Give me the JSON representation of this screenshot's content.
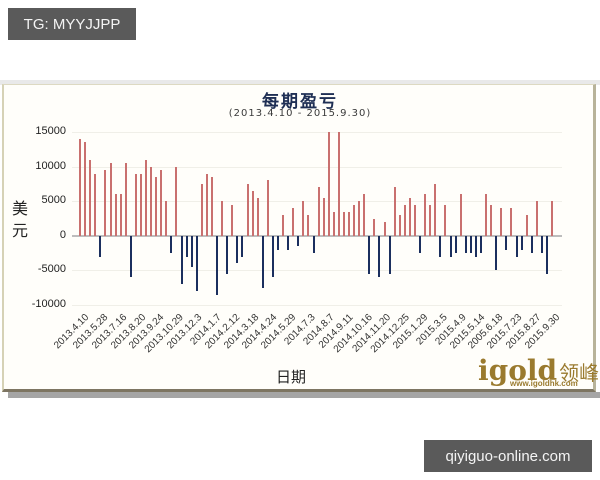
{
  "overlays": {
    "top_badge": "TG: MYYJJPP",
    "bottom_badge": "qiyiguo-online.com"
  },
  "logo": {
    "brand": "igold",
    "brand_cn": "领峰",
    "url": "www.igoldhk.com"
  },
  "chart_data": {
    "type": "bar",
    "title": "每期盈亏",
    "subtitle": "(2013.4.10 - 2015.9.30)",
    "xlabel": "日期",
    "ylabel": "美元",
    "ylim": [
      -10000,
      15000
    ],
    "yticks": [
      "15000",
      "10000",
      "5000",
      "0",
      "-5000",
      "-10000"
    ],
    "grid": true,
    "legend": "none",
    "colors": {
      "positive": "#c9706f",
      "negative": "#1b2f5e"
    },
    "x_tick_labels": [
      "2013.4.10",
      "2013.5.28",
      "2013.7.16",
      "2013.8.20",
      "2013.9.24",
      "2013.10.29",
      "2013.12.3",
      "2014.1.7",
      "2014.2.12",
      "2014.3.18",
      "2014.4.24",
      "2014.5.29",
      "2014.7.3",
      "2014.8.7",
      "2014.9.11",
      "2014.10.16",
      "2014.11.20",
      "2014.12.25",
      "2015.1.29",
      "2015.3.5",
      "2015.4.9",
      "2015.5.14",
      "2005.6.18",
      "2015.7.23",
      "2015.8.27",
      "2015.9.30"
    ],
    "values": [
      14000,
      13500,
      11000,
      9000,
      -3000,
      9500,
      10500,
      6000,
      6000,
      10500,
      -6000,
      9000,
      9000,
      11000,
      10000,
      8500,
      9500,
      5000,
      -2500,
      10000,
      -7000,
      -3000,
      -4500,
      -8000,
      7500,
      9000,
      8500,
      -8500,
      5000,
      -5500,
      4500,
      -4000,
      -3000,
      7500,
      6500,
      5500,
      -7500,
      8000,
      -6000,
      -2000,
      3000,
      -2000,
      4000,
      -1500,
      5000,
      3000,
      -2500,
      7000,
      5500,
      15000,
      3500,
      15000,
      3500,
      3500,
      4500,
      5000,
      6000,
      -5500,
      2500,
      -6000,
      2000,
      -5500,
      7000,
      3000,
      4500,
      5500,
      4500,
      -2500,
      6000,
      4500,
      7500,
      -3000,
      4500,
      -3000,
      -2500,
      6000,
      -2500,
      -2500,
      -3000,
      -2500,
      6000,
      4500,
      -5000,
      4000,
      -2000,
      4000,
      -3000,
      -2000,
      3000,
      -2500,
      5000,
      -2500,
      -5500,
      5000
    ]
  }
}
